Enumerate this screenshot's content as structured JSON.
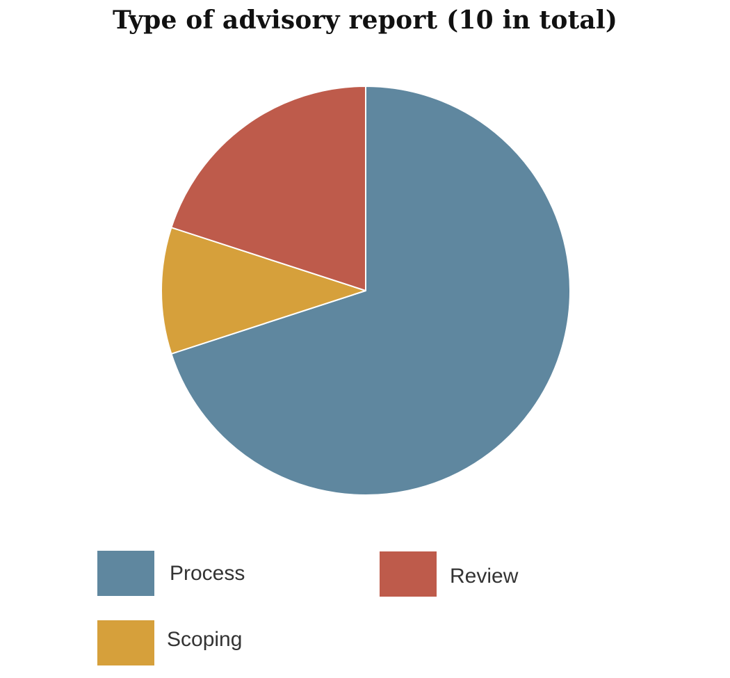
{
  "chart_data": {
    "type": "pie",
    "title": "Type of advisory report (10 in total)",
    "categories": [
      "Process",
      "Scoping",
      "Review"
    ],
    "values": [
      7,
      1,
      2
    ],
    "colors": [
      "#5f879f",
      "#d6a03b",
      "#be5b4b"
    ],
    "start_angle": "12 o'clock",
    "direction": "clockwise",
    "legend": {
      "placement": "bottom",
      "items": [
        {
          "label": "Process",
          "color": "#5f879f"
        },
        {
          "label": "Review",
          "color": "#be5b4b"
        },
        {
          "label": "Scoping",
          "color": "#d6a03b"
        }
      ]
    }
  }
}
